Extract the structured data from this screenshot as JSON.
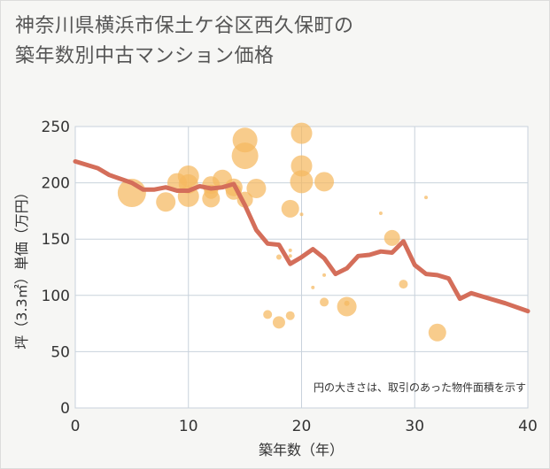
{
  "title": {
    "line1": "神奈川県横浜市保土ケ谷区西久保町の",
    "line2": "築年数別中古マンション価格"
  },
  "colors": {
    "line": "#d46e5a",
    "bubble": "#f5b860",
    "grid": "#c8d2dc",
    "plot_bg": "#ffffff"
  },
  "chart_data": {
    "type": "scatter",
    "xlabel": "築年数（年）",
    "ylabel": "坪（3.3㎡）単価（万円）",
    "xlim": [
      0,
      40
    ],
    "ylim": [
      0,
      250
    ],
    "xticks": [
      0,
      10,
      20,
      30,
      40
    ],
    "yticks": [
      0,
      50,
      100,
      150,
      200,
      250
    ],
    "note": "円の大きさは、取引のあった物件面積を示す",
    "line": {
      "x": [
        0,
        2,
        3,
        5,
        6,
        7,
        8,
        9,
        10,
        11,
        12,
        13,
        14,
        15,
        16,
        17,
        18,
        19,
        20,
        21,
        22,
        23,
        24,
        25,
        26,
        27,
        28,
        29,
        30,
        31,
        32,
        33,
        34,
        35,
        36,
        38,
        40
      ],
      "y": [
        219,
        213,
        207,
        200,
        194,
        194,
        196,
        193,
        193,
        197,
        195,
        196,
        199,
        180,
        158,
        146,
        145,
        128,
        134,
        141,
        133,
        119,
        124,
        135,
        136,
        139,
        138,
        148,
        127,
        119,
        118,
        115,
        97,
        102,
        99,
        93,
        86
      ]
    },
    "bubbles": [
      {
        "x": 5,
        "y": 191,
        "r": 16
      },
      {
        "x": 8,
        "y": 183,
        "r": 11
      },
      {
        "x": 9,
        "y": 200,
        "r": 11
      },
      {
        "x": 10,
        "y": 206,
        "r": 12
      },
      {
        "x": 10,
        "y": 199,
        "r": 11
      },
      {
        "x": 10,
        "y": 188,
        "r": 12
      },
      {
        "x": 12,
        "y": 198,
        "r": 10
      },
      {
        "x": 12,
        "y": 186,
        "r": 10
      },
      {
        "x": 12,
        "y": 192,
        "r": 8
      },
      {
        "x": 13,
        "y": 203,
        "r": 11
      },
      {
        "x": 14,
        "y": 196,
        "r": 10
      },
      {
        "x": 14,
        "y": 192,
        "r": 9
      },
      {
        "x": 15,
        "y": 238,
        "r": 14
      },
      {
        "x": 15,
        "y": 224,
        "r": 15
      },
      {
        "x": 15,
        "y": 185,
        "r": 9
      },
      {
        "x": 16,
        "y": 195,
        "r": 11
      },
      {
        "x": 17,
        "y": 83,
        "r": 5
      },
      {
        "x": 18,
        "y": 76,
        "r": 7
      },
      {
        "x": 18,
        "y": 134,
        "r": 3
      },
      {
        "x": 19,
        "y": 177,
        "r": 10
      },
      {
        "x": 19,
        "y": 140,
        "r": 2
      },
      {
        "x": 19,
        "y": 135,
        "r": 2
      },
      {
        "x": 19,
        "y": 82,
        "r": 5
      },
      {
        "x": 20,
        "y": 244,
        "r": 12
      },
      {
        "x": 20,
        "y": 215,
        "r": 12
      },
      {
        "x": 20,
        "y": 201,
        "r": 13
      },
      {
        "x": 20,
        "y": 172,
        "r": 2
      },
      {
        "x": 21,
        "y": 107,
        "r": 2
      },
      {
        "x": 22,
        "y": 201,
        "r": 11
      },
      {
        "x": 22,
        "y": 118,
        "r": 2
      },
      {
        "x": 22,
        "y": 94,
        "r": 5
      },
      {
        "x": 24,
        "y": 90,
        "r": 11
      },
      {
        "x": 24,
        "y": 93,
        "r": 3
      },
      {
        "x": 27,
        "y": 173,
        "r": 2
      },
      {
        "x": 28,
        "y": 151,
        "r": 9
      },
      {
        "x": 29,
        "y": 110,
        "r": 5
      },
      {
        "x": 31,
        "y": 187,
        "r": 2
      },
      {
        "x": 32,
        "y": 67,
        "r": 10
      }
    ]
  }
}
